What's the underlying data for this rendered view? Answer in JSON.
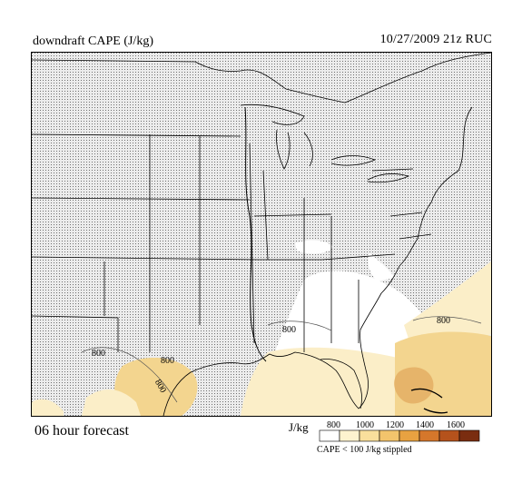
{
  "header": {
    "field_title": "downdraft CAPE (J/kg)",
    "run_info": "10/27/2009  21z  RUC"
  },
  "footer": {
    "forecast_label": "06 hour forecast",
    "units": "J/kg",
    "stipple_note": "CAPE < 100 J/kg stippled"
  },
  "colorbar": {
    "levels": [
      "800",
      "1000",
      "1200",
      "1400",
      "1600"
    ],
    "colors": [
      "#ffffff",
      "#fdf3cf",
      "#f9df9c",
      "#f2c46c",
      "#e8a241",
      "#d5772b",
      "#b5521c",
      "#7a2d10"
    ]
  },
  "contour_labels": [
    "800",
    "800",
    "800",
    "800",
    "800"
  ],
  "colors": {
    "stipple_bg": "#d7d7d7",
    "boundary": "#000000",
    "shade_light": "#fbeec8",
    "shade_mid": "#f3d58f",
    "shade_dark": "#e6b46a"
  }
}
